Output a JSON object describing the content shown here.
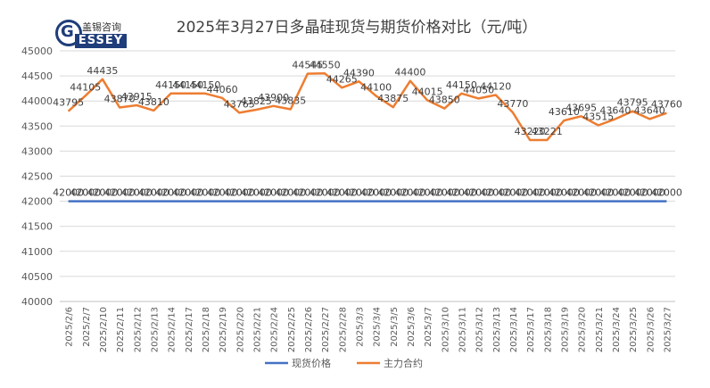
{
  "logo": {
    "cn": "盖锡咨询",
    "en": "ESSEY",
    "g": "G"
  },
  "chart_data": {
    "type": "line",
    "title": "2025年3月27日多晶硅现货与期货价格对比（元/吨）",
    "xlabel": "",
    "ylabel": "",
    "ylim": [
      40000,
      45000
    ],
    "yticks": [
      40000,
      40500,
      41000,
      41500,
      42000,
      42500,
      43000,
      43500,
      44000,
      44500,
      45000
    ],
    "grid": true,
    "legend_position": "bottom",
    "categories": [
      "2025/2/6",
      "2025/2/7",
      "2025/2/10",
      "2025/2/11",
      "2025/2/12",
      "2025/2/13",
      "2025/2/14",
      "2025/2/17",
      "2025/2/18",
      "2025/2/19",
      "2025/2/20",
      "2025/2/21",
      "2025/2/24",
      "2025/2/25",
      "2025/2/26",
      "2025/2/27",
      "2025/2/28",
      "2025/3/3",
      "2025/3/4",
      "2025/3/5",
      "2025/3/6",
      "2025/3/7",
      "2025/3/10",
      "2025/3/11",
      "2025/3/12",
      "2025/3/13",
      "2025/3/14",
      "2025/3/17",
      "2025/3/18",
      "2025/3/19",
      "2025/3/20",
      "2025/3/21",
      "2025/3/24",
      "2025/3/25",
      "2025/3/26",
      "2025/3/27"
    ],
    "series": [
      {
        "name": "现货价格",
        "color": "#4472c4",
        "values": [
          42000,
          42000,
          42000,
          42000,
          42000,
          42000,
          42000,
          42000,
          42000,
          42000,
          42000,
          42000,
          42000,
          42000,
          42000,
          42000,
          42000,
          42000,
          42000,
          42000,
          42000,
          42000,
          42000,
          42000,
          42000,
          42000,
          42000,
          42000,
          42000,
          42000,
          42000,
          42000,
          42000,
          42000,
          42000,
          42000
        ]
      },
      {
        "name": "主力合约",
        "color": "#ed7d31",
        "values": [
          43795,
          44105,
          44435,
          43870,
          43915,
          43810,
          44150,
          44150,
          44150,
          44060,
          43765,
          43825,
          43900,
          43835,
          44545,
          44550,
          44265,
          44390,
          44100,
          43875,
          44400,
          44015,
          43850,
          44150,
          44050,
          44120,
          43770,
          43220,
          43221,
          43610,
          43695,
          43515,
          43640,
          43795,
          43640,
          43760
        ]
      }
    ]
  }
}
